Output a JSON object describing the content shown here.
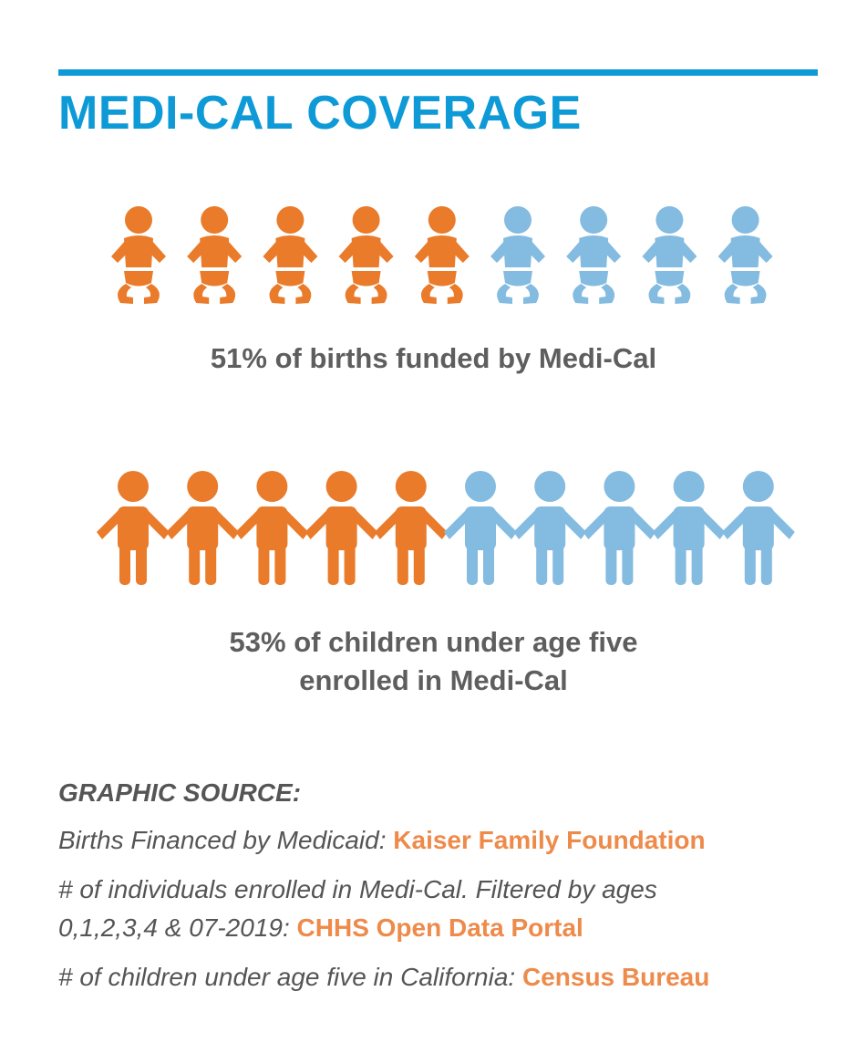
{
  "title": "MEDI-CAL COVERAGE",
  "colors": {
    "accent": "#0d9ad6",
    "highlight": "#e97b2a",
    "base": "#84bbe0",
    "text": "#5e5e5e",
    "link": "#ee8a4a"
  },
  "chart_data": [
    {
      "type": "pictograph",
      "icon": "baby-icon",
      "total_icons": 9,
      "highlighted_icons": 5,
      "value_percent": 51,
      "caption": "51% of births funded by Medi-Cal"
    },
    {
      "type": "pictograph",
      "icon": "child-icon",
      "total_icons": 10,
      "highlighted_icons": 5,
      "value_percent": 53,
      "caption_lines": [
        "53% of children under age five",
        "enrolled in Medi-Cal"
      ]
    }
  ],
  "sources": {
    "heading": "GRAPHIC SOURCE:",
    "items": [
      {
        "text": "Births Financed by Medicaid: ",
        "link": "Kaiser Family Foundation"
      },
      {
        "text_lines": [
          "# of individuals enrolled in Medi-Cal. Filtered by ages",
          "0,1,2,3,4 & 07-2019: "
        ],
        "link": "CHHS Open Data Portal"
      },
      {
        "text": "# of children under age five in California: ",
        "link": "Census Bureau"
      }
    ]
  }
}
